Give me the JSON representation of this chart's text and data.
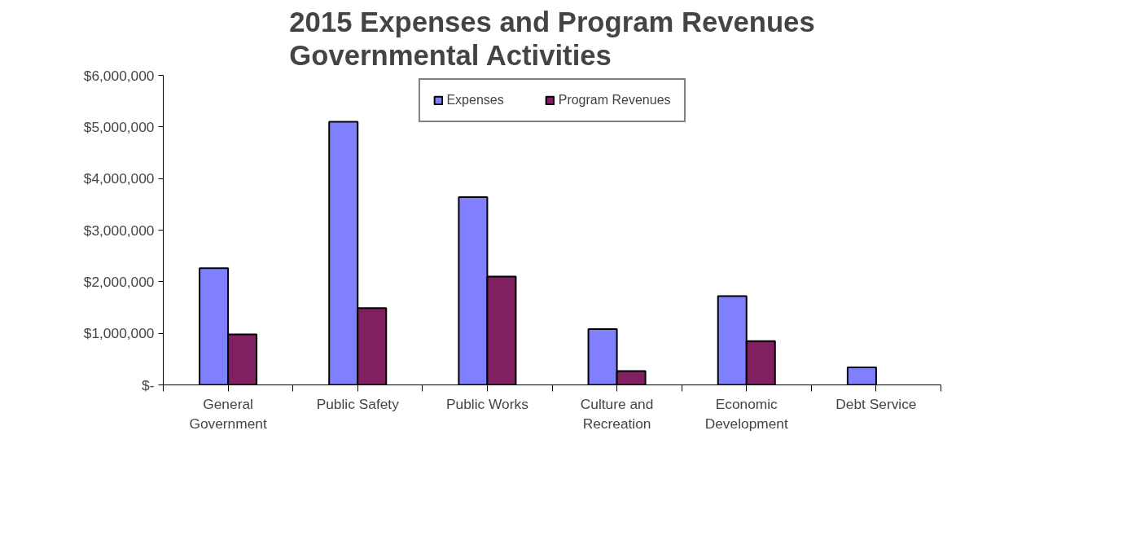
{
  "chart_data": {
    "type": "bar",
    "title": "2015 Expenses and Program Revenues\nGovernmental Activities",
    "categories": [
      "General Government",
      "Public Safety",
      "Public Works",
      "Culture and Recreation",
      "Economic Development",
      "Debt Service"
    ],
    "series": [
      {
        "name": "Expenses",
        "color": "#8080ff",
        "values": [
          2260000,
          5100000,
          3640000,
          1080000,
          1720000,
          340000
        ]
      },
      {
        "name": "Program Revenues",
        "color": "#802060",
        "values": [
          980000,
          1490000,
          2100000,
          270000,
          850000,
          null
        ]
      }
    ],
    "ylim": [
      0,
      6000000
    ],
    "yticks": [
      {
        "value": 0,
        "label": "$-"
      },
      {
        "value": 1000000,
        "label": "$1,000,000"
      },
      {
        "value": 2000000,
        "label": "$2,000,000"
      },
      {
        "value": 3000000,
        "label": "$3,000,000"
      },
      {
        "value": 4000000,
        "label": "$4,000,000"
      },
      {
        "value": 5000000,
        "label": "$5,000,000"
      },
      {
        "value": 6000000,
        "label": "$6,000,000"
      }
    ],
    "grid": false,
    "legend": "top"
  }
}
